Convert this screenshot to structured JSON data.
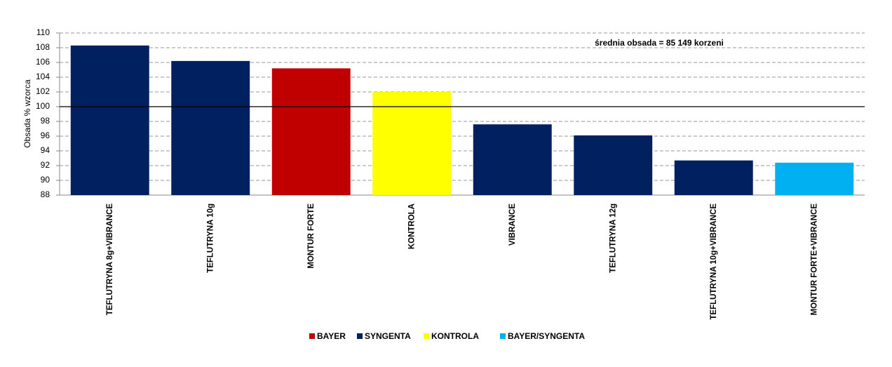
{
  "chart_data": {
    "type": "bar",
    "y_label": "Obsada % wzorca",
    "annotation": "średnia obsada  = 85 149 korzeni",
    "categories": [
      "TEFLUTRYNA 8g+VIBRANCE",
      "TEFLUTRYNA 10g",
      "MONTUR FORTE",
      "KONTROLA",
      "VIBRANCE",
      "TEFLUTRYNA 12g",
      "TEFLUTRYNA 10g+VIBRANCE",
      "MONTUR FORTE+VIBRANCE"
    ],
    "series": [
      {
        "name": "BAYER",
        "color": "#c00000",
        "values": [
          null,
          null,
          105.2,
          null,
          null,
          null,
          null,
          null
        ]
      },
      {
        "name": "SYNGENTA",
        "color": "#002060",
        "values": [
          108.3,
          106.2,
          null,
          null,
          97.6,
          96.1,
          92.7,
          null
        ]
      },
      {
        "name": "KONTROLA",
        "color": "#ffff00",
        "values": [
          null,
          null,
          null,
          102.0,
          null,
          null,
          null,
          null
        ]
      },
      {
        "name": "BAYER/SYNGENTA",
        "color": "#00b0f0",
        "values": [
          null,
          null,
          null,
          null,
          null,
          null,
          null,
          92.4
        ]
      }
    ],
    "reference_line": 100,
    "ylim": [
      88,
      110
    ],
    "yticks": [
      88,
      90,
      92,
      94,
      96,
      98,
      100,
      102,
      104,
      106,
      108,
      110
    ],
    "grid": true
  }
}
